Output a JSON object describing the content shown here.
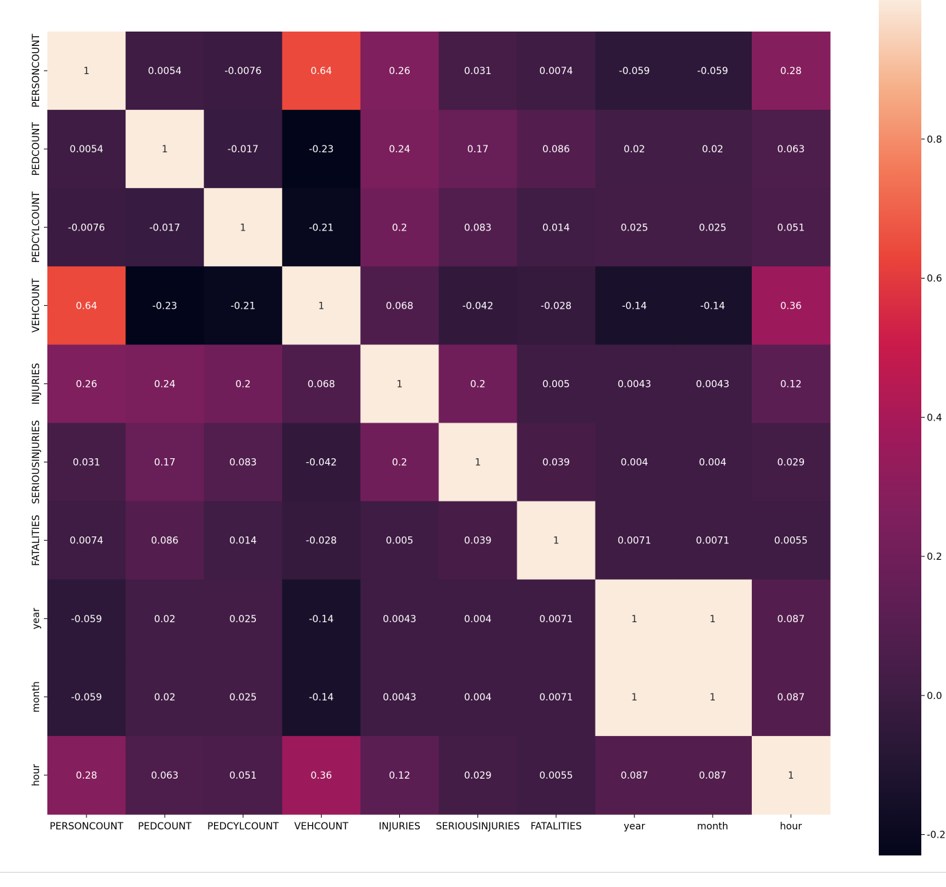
{
  "chart_data": {
    "type": "heatmap",
    "title": "",
    "xlabel": "",
    "ylabel": "",
    "labels": [
      "PERSONCOUNT",
      "PEDCOUNT",
      "PEDCYLCOUNT",
      "VEHCOUNT",
      "INJURIES",
      "SERIOUSINJURIES",
      "FATALITIES",
      "year",
      "month",
      "hour"
    ],
    "matrix": [
      [
        1,
        0.0054,
        -0.0076,
        0.64,
        0.26,
        0.031,
        0.0074,
        -0.059,
        -0.059,
        0.28
      ],
      [
        0.0054,
        1,
        -0.017,
        -0.23,
        0.24,
        0.17,
        0.086,
        0.02,
        0.02,
        0.063
      ],
      [
        -0.0076,
        -0.017,
        1,
        -0.21,
        0.2,
        0.083,
        0.014,
        0.025,
        0.025,
        0.051
      ],
      [
        0.64,
        -0.23,
        -0.21,
        1,
        0.068,
        -0.042,
        -0.028,
        -0.14,
        -0.14,
        0.36
      ],
      [
        0.26,
        0.24,
        0.2,
        0.068,
        1,
        0.2,
        0.005,
        0.0043,
        0.0043,
        0.12
      ],
      [
        0.031,
        0.17,
        0.083,
        -0.042,
        0.2,
        1,
        0.039,
        0.004,
        0.004,
        0.029
      ],
      [
        0.0074,
        0.086,
        0.014,
        -0.028,
        0.005,
        0.039,
        1,
        0.0071,
        0.0071,
        0.0055
      ],
      [
        -0.059,
        0.02,
        0.025,
        -0.14,
        0.0043,
        0.004,
        0.0071,
        1,
        1,
        0.087
      ],
      [
        -0.059,
        0.02,
        0.025,
        -0.14,
        0.0043,
        0.004,
        0.0071,
        1,
        1,
        0.087
      ],
      [
        0.28,
        0.063,
        0.051,
        0.36,
        0.12,
        0.029,
        0.0055,
        0.087,
        0.087,
        1
      ]
    ],
    "colorbar": {
      "vmin": -0.23,
      "vmax": 1,
      "ticks": [
        -0.2,
        0.0,
        0.2,
        0.4,
        0.6,
        0.8
      ],
      "tick_labels": [
        "-0.2",
        "0.0",
        "0.2",
        "0.4",
        "0.6",
        "0.8"
      ]
    },
    "colormap": "rocket",
    "annotated": true,
    "grid": false
  }
}
